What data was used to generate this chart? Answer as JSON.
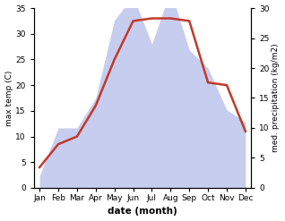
{
  "months": [
    "Jan",
    "Feb",
    "Mar",
    "Apr",
    "May",
    "Jun",
    "Jul",
    "Aug",
    "Sep",
    "Oct",
    "Nov",
    "Dec"
  ],
  "temperature": [
    4,
    8.5,
    10,
    16,
    25,
    32.5,
    33,
    33,
    32.5,
    20.5,
    20,
    11
  ],
  "precipitation": [
    2,
    10,
    10,
    15,
    28,
    32,
    24,
    33,
    23,
    20,
    13,
    11
  ],
  "temp_color": "#c0392b",
  "precip_color": "#b0b8e8",
  "left_ylabel": "max temp (C)",
  "right_ylabel": "med. precipitation (kg/m2)",
  "xlabel": "date (month)",
  "left_ylim": [
    0,
    35
  ],
  "right_ylim": [
    0,
    30
  ],
  "left_yticks": [
    0,
    5,
    10,
    15,
    20,
    25,
    30,
    35
  ],
  "right_yticks": [
    0,
    5,
    10,
    15,
    20,
    25,
    30
  ],
  "bg_color": "#ffffff"
}
